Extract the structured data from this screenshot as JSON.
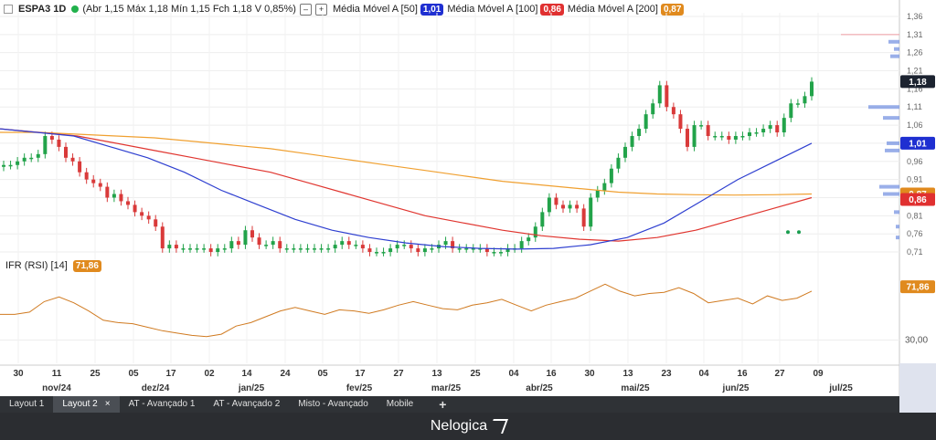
{
  "header": {
    "ticker": "ESPA3 1D",
    "ohlc": "(Abr 1,15 Máx 1,18 Mín 1,15 Fch 1,18 V 0,85%)",
    "ma": [
      {
        "label": "Média Móvel A [50]",
        "value": "1,01",
        "color": "#1f2fd1"
      },
      {
        "label": "Média Móvel A [100]",
        "value": "0,86",
        "color": "#e03030"
      },
      {
        "label": "Média Móvel A [200]",
        "value": "0,87",
        "color": "#e08a1e"
      }
    ],
    "close_icon": "close-icon"
  },
  "rsi_label": "IFR (RSI) [14]",
  "rsi_value": "71,86",
  "chart_data": {
    "type": "candlestick",
    "price_axis": {
      "ticks": [
        "1,36",
        "1,31",
        "1,26",
        "1,21",
        "1,16",
        "1,11",
        "1,06",
        "1,01",
        "0,96",
        "0,91",
        "0,86",
        "0,81",
        "0,76",
        "0,71"
      ],
      "range": [
        0.695,
        1.37
      ]
    },
    "rsi_axis": {
      "ticks": [
        "30,00"
      ],
      "range": [
        0,
        100
      ]
    },
    "x_day_labels": [
      "30",
      "11",
      "25",
      "05",
      "17",
      "02",
      "14",
      "24",
      "05",
      "17",
      "27",
      "13",
      "25",
      "04",
      "16",
      "30",
      "13",
      "23",
      "04",
      "16",
      "27",
      "09"
    ],
    "x_month_labels": [
      "nov/24",
      "dez/24",
      "jan/25",
      "fev/25",
      "mar/25",
      "abr/25",
      "mai/25",
      "jun/25",
      "jul/25"
    ],
    "last_price": "1,18",
    "price_series": [
      0.95,
      0.95,
      0.96,
      0.97,
      0.97,
      0.98,
      1.03,
      1.02,
      1.0,
      0.97,
      0.96,
      0.93,
      0.91,
      0.9,
      0.89,
      0.86,
      0.87,
      0.85,
      0.84,
      0.82,
      0.81,
      0.8,
      0.78,
      0.72,
      0.73,
      0.72,
      0.72,
      0.72,
      0.72,
      0.72,
      0.71,
      0.72,
      0.72,
      0.74,
      0.73,
      0.77,
      0.75,
      0.73,
      0.73,
      0.74,
      0.72,
      0.72,
      0.72,
      0.72,
      0.72,
      0.72,
      0.72,
      0.72,
      0.73,
      0.74,
      0.73,
      0.73,
      0.72,
      0.71,
      0.71,
      0.71,
      0.72,
      0.73,
      0.73,
      0.72,
      0.71,
      0.72,
      0.72,
      0.73,
      0.74,
      0.72,
      0.72,
      0.72,
      0.72,
      0.72,
      0.71,
      0.71,
      0.71,
      0.72,
      0.72,
      0.74,
      0.75,
      0.78,
      0.82,
      0.86,
      0.84,
      0.83,
      0.84,
      0.83,
      0.78,
      0.86,
      0.88,
      0.9,
      0.94,
      0.97,
      1.0,
      1.03,
      1.05,
      1.09,
      1.12,
      1.17,
      1.11,
      1.09,
      1.05,
      1.0,
      1.06,
      1.06,
      1.03,
      1.03,
      1.03,
      1.02,
      1.03,
      1.03,
      1.04,
      1.04,
      1.05,
      1.06,
      1.04,
      1.08,
      1.12,
      1.12,
      1.14,
      1.18
    ],
    "ma50": [
      1.05,
      1.04,
      1.03,
      1.0,
      0.97,
      0.93,
      0.88,
      0.84,
      0.8,
      0.77,
      0.75,
      0.735,
      0.725,
      0.72,
      0.718,
      0.72,
      0.73,
      0.75,
      0.79,
      0.85,
      0.91,
      0.96,
      1.01
    ],
    "ma100": [
      1.05,
      1.04,
      1.03,
      1.01,
      0.99,
      0.97,
      0.95,
      0.93,
      0.9,
      0.87,
      0.84,
      0.81,
      0.79,
      0.77,
      0.755,
      0.745,
      0.74,
      0.75,
      0.77,
      0.8,
      0.83,
      0.86
    ],
    "ma200": [
      1.04,
      1.04,
      1.035,
      1.03,
      1.025,
      1.015,
      1.005,
      0.995,
      0.98,
      0.965,
      0.95,
      0.935,
      0.92,
      0.905,
      0.895,
      0.885,
      0.875,
      0.87,
      0.868,
      0.867,
      0.868,
      0.87
    ],
    "rsi": [
      52,
      52,
      54,
      63,
      67,
      62,
      55,
      47,
      45,
      44,
      41,
      38,
      36,
      34,
      33,
      35,
      42,
      45,
      50,
      55,
      58,
      55,
      52,
      56,
      55,
      53,
      56,
      60,
      63,
      60,
      57,
      56,
      60,
      62,
      65,
      60,
      55,
      60,
      63,
      66,
      72,
      78,
      72,
      68,
      70,
      71,
      75,
      70,
      62,
      64,
      66,
      61,
      68,
      64,
      66,
      72
    ]
  },
  "tabs": [
    {
      "label": "Layout 1",
      "active": false
    },
    {
      "label": "Layout 2",
      "active": true,
      "close": "×"
    },
    {
      "label": "AT - Avançado 1",
      "active": false
    },
    {
      "label": "AT - Avançado 2",
      "active": false
    },
    {
      "label": "Misto - Avançado",
      "active": false
    },
    {
      "label": "Mobile",
      "active": false
    }
  ],
  "add_tab": "+",
  "brand": "Nelogica",
  "colors": {
    "up": "#22a34a",
    "down": "#d93a3a",
    "ma50": "#2e3fd0",
    "ma100": "#e0352f",
    "ma200": "#f0a030",
    "rsi": "#d07a20"
  }
}
